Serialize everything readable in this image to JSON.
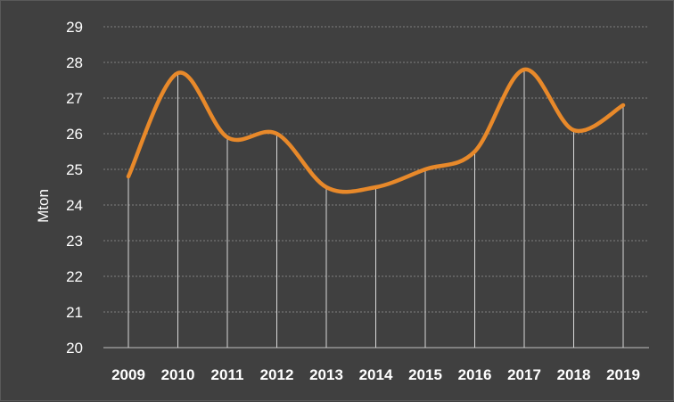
{
  "chart_data": {
    "type": "line",
    "title": "",
    "xlabel": "",
    "ylabel": "Mton",
    "ylim": [
      20,
      29
    ],
    "yticks": [
      20,
      21,
      22,
      23,
      24,
      25,
      26,
      27,
      28,
      29
    ],
    "grid": true,
    "x": [
      "2009",
      "2010",
      "2011",
      "2012",
      "2013",
      "2014",
      "2015",
      "2016",
      "2017",
      "2018",
      "2019"
    ],
    "series": [
      {
        "values": [
          24.8,
          27.7,
          25.9,
          26.0,
          24.5,
          24.5,
          25.0,
          25.5,
          27.8,
          26.1,
          26.8
        ],
        "color": "#e8892a"
      }
    ],
    "colors": {
      "background": "#404040",
      "line": "#e8892a",
      "drop_lines": "#d9d9d9",
      "grid": "#7f7f7f",
      "text": "#ffffff"
    }
  }
}
